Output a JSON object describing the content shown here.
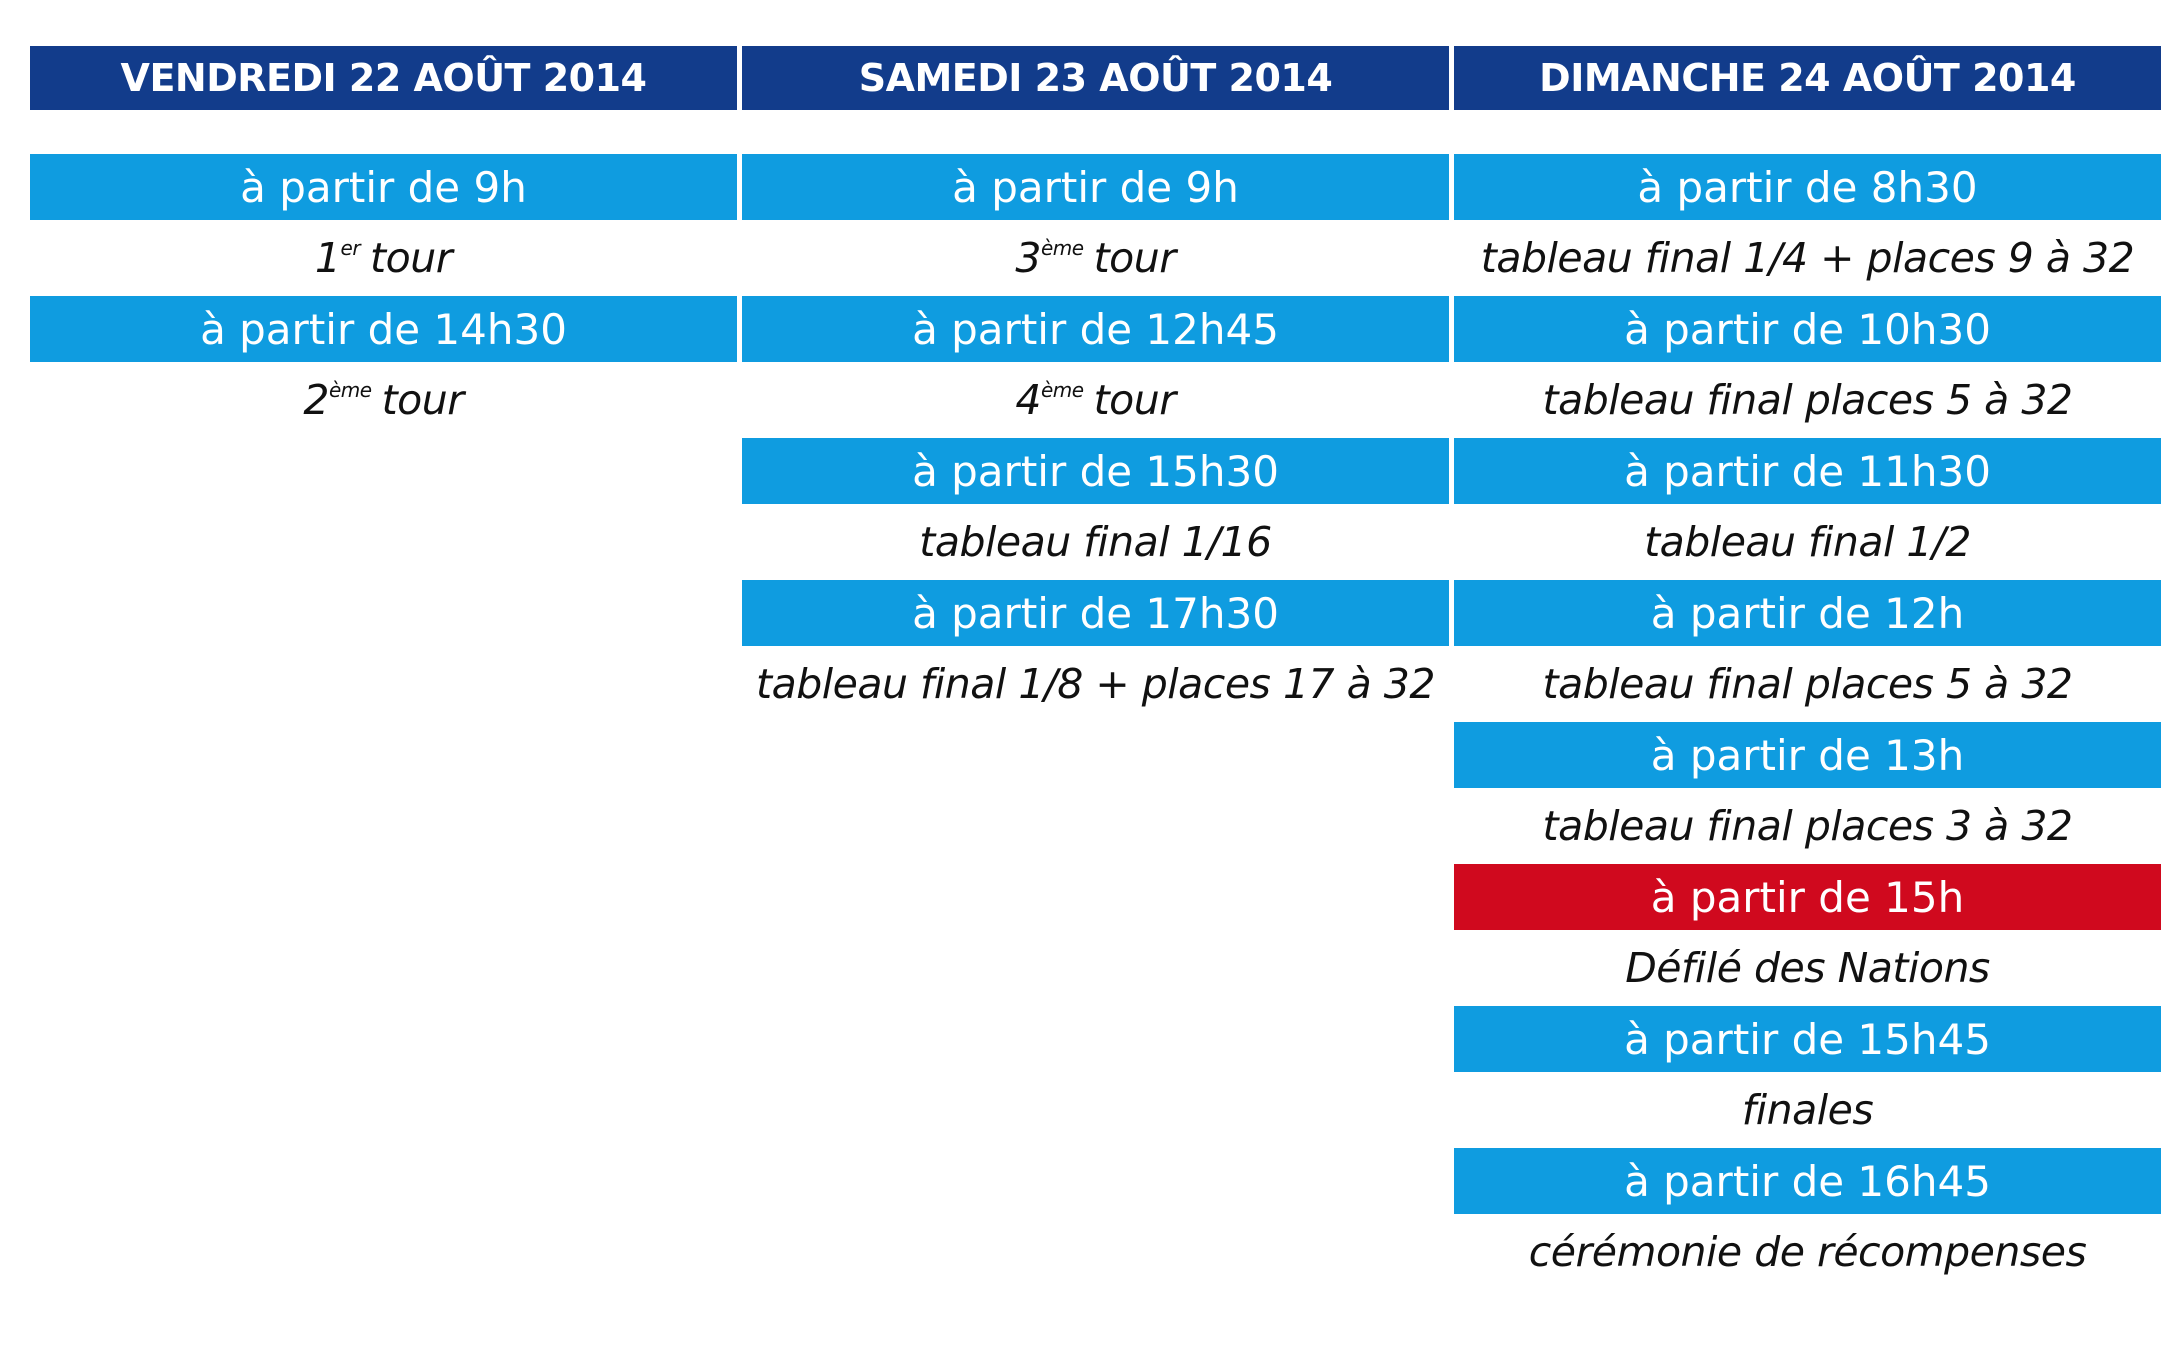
{
  "columns": [
    {
      "day": "VENDREDI 22 AOÛT 2014",
      "slots": [
        {
          "time": "à partir de 9h",
          "event": {
            "num": "1",
            "sup": "er",
            "text": "tour"
          }
        },
        {
          "time": "à partir de 14h30",
          "event": {
            "num": "2",
            "sup": "ème",
            "text": "tour"
          }
        }
      ]
    },
    {
      "day": "SAMEDI 23 AOÛT 2014",
      "slots": [
        {
          "time": "à partir de 9h",
          "event": {
            "num": "3",
            "sup": "ème",
            "text": "tour"
          }
        },
        {
          "time": "à partir de 12h45",
          "event": {
            "num": "4",
            "sup": "ème",
            "text": "tour"
          }
        },
        {
          "time": "à partir de 15h30",
          "event": {
            "text": "tableau final 1/16"
          }
        },
        {
          "time": "à partir de 17h30",
          "event": {
            "text": "tableau final 1/8 + places 17 à 32"
          }
        }
      ]
    },
    {
      "day": "DIMANCHE 24 AOÛT 2014",
      "slots": [
        {
          "time": "à partir de 8h30",
          "event": {
            "text": "tableau final 1/4 + places 9 à 32"
          }
        },
        {
          "time": "à partir de 10h30",
          "event": {
            "text": "tableau final places 5 à 32"
          }
        },
        {
          "time": "à partir de 11h30",
          "event": {
            "text": "tableau final 1/2"
          }
        },
        {
          "time": "à partir de 12h",
          "event": {
            "text": "tableau final places 5 à 32"
          }
        },
        {
          "time": "à partir de 13h",
          "event": {
            "text": "tableau final places 3 à 32"
          }
        },
        {
          "time": "à partir de 15h",
          "highlight": true,
          "event": {
            "text": "Défilé des Nations"
          }
        },
        {
          "time": "à partir de 15h45",
          "event": {
            "text": "finales"
          }
        },
        {
          "time": "à partir de 16h45",
          "event": {
            "text": "cérémonie de récompenses"
          }
        }
      ]
    }
  ],
  "colors": {
    "header_bg": "#123c8b",
    "time_bar_bg": "#0f9ce0",
    "highlight_bg": "#d0091e",
    "event_text": "#111111"
  }
}
